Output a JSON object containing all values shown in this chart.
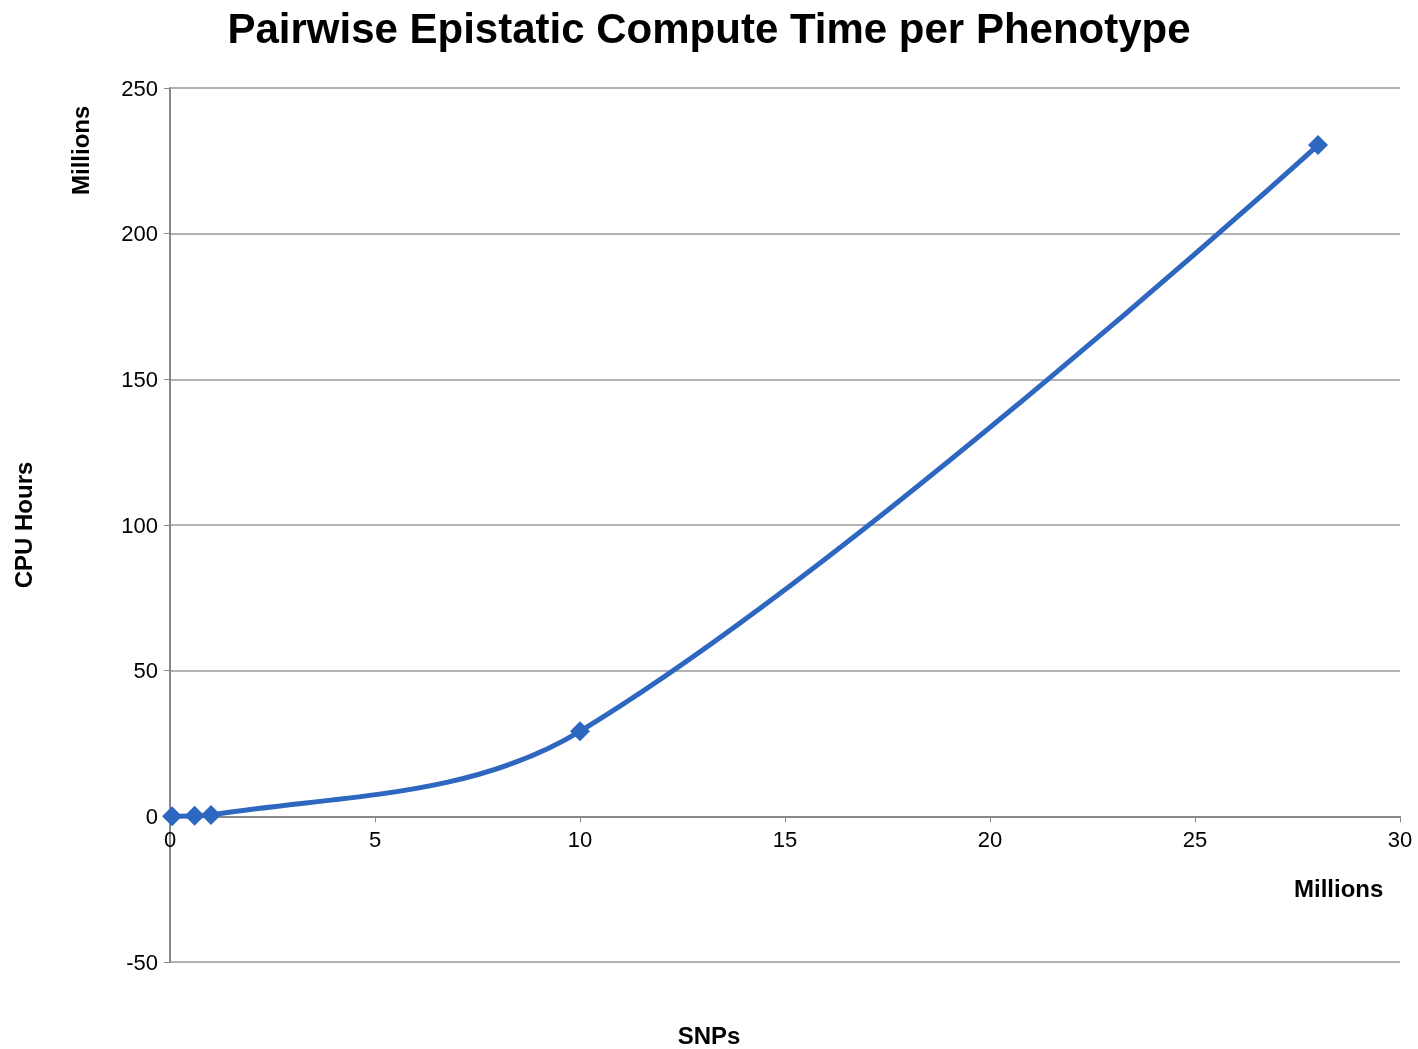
{
  "chart_data": {
    "type": "line",
    "title": "Pairwise Epistatic Compute Time per Phenotype",
    "xlabel": "SNPs",
    "ylabel": "CPU Hours",
    "annotations": [
      "Millions",
      "Millions"
    ],
    "x": [
      0.05,
      0.6,
      1,
      10,
      28
    ],
    "series": [
      {
        "color": "#2e67c0",
        "values": [
          0,
          0.2,
          0.5,
          29.2,
          230.4
        ]
      }
    ],
    "xlim": [
      0,
      30
    ],
    "xticks": [
      0,
      5,
      10,
      15,
      20,
      25,
      30
    ],
    "ylim": [
      -50,
      250
    ],
    "yticks": [
      -50,
      0,
      50,
      100,
      150,
      200,
      250
    ],
    "grid": "y",
    "marker": "diamond",
    "line_style": "solid"
  }
}
